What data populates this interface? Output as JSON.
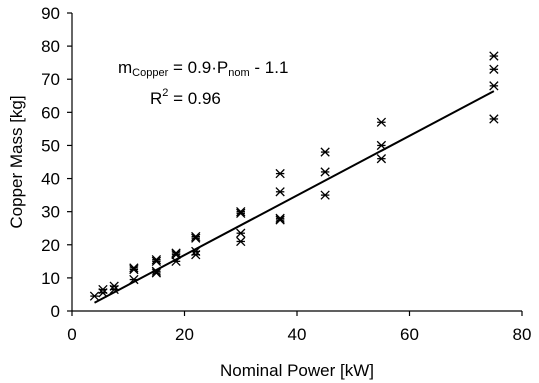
{
  "chart_data": {
    "type": "scatter",
    "xlabel": "Nominal Power [kW]",
    "ylabel": "Copper Mass [kg]",
    "xlim": [
      0,
      80
    ],
    "ylim": [
      0,
      90
    ],
    "x_ticks": [
      0,
      20,
      40,
      60,
      80
    ],
    "y_ticks": [
      0,
      10,
      20,
      30,
      40,
      50,
      60,
      70,
      80,
      90
    ],
    "grid": false,
    "legend": "none",
    "marker": "asterisk",
    "marker_color": "#000000",
    "fit_line": {
      "slope": 0.9,
      "intercept": -1.1,
      "x_range": [
        4,
        75
      ],
      "color": "#000000"
    },
    "annotations": {
      "equation": {
        "prefix": "m",
        "prefix_sub": "Copper",
        "middle": " = 0.9·P",
        "middle_sub": "nom",
        "suffix": " - 1.1"
      },
      "r_squared": {
        "prefix": "R",
        "sup": "2",
        "suffix": " = 0.96"
      }
    },
    "points": [
      {
        "x": 4,
        "y": 4.5
      },
      {
        "x": 5.5,
        "y": 5.5
      },
      {
        "x": 5.5,
        "y": 6.5
      },
      {
        "x": 7.5,
        "y": 6.5
      },
      {
        "x": 7.5,
        "y": 7.5
      },
      {
        "x": 11,
        "y": 9.5
      },
      {
        "x": 11,
        "y": 12.5
      },
      {
        "x": 11,
        "y": 13
      },
      {
        "x": 15,
        "y": 11.5
      },
      {
        "x": 15,
        "y": 12
      },
      {
        "x": 15,
        "y": 15
      },
      {
        "x": 15,
        "y": 15.5
      },
      {
        "x": 18.5,
        "y": 15
      },
      {
        "x": 18.5,
        "y": 17
      },
      {
        "x": 18.5,
        "y": 17.5
      },
      {
        "x": 22,
        "y": 17
      },
      {
        "x": 22,
        "y": 18
      },
      {
        "x": 22,
        "y": 22
      },
      {
        "x": 22,
        "y": 22.5
      },
      {
        "x": 30,
        "y": 21
      },
      {
        "x": 30,
        "y": 23.5
      },
      {
        "x": 30,
        "y": 29.5
      },
      {
        "x": 30,
        "y": 30
      },
      {
        "x": 37,
        "y": 27.5
      },
      {
        "x": 37,
        "y": 28
      },
      {
        "x": 37,
        "y": 36
      },
      {
        "x": 37,
        "y": 41.5
      },
      {
        "x": 45,
        "y": 35
      },
      {
        "x": 45,
        "y": 42
      },
      {
        "x": 45,
        "y": 48
      },
      {
        "x": 55,
        "y": 46
      },
      {
        "x": 55,
        "y": 50
      },
      {
        "x": 55,
        "y": 57
      },
      {
        "x": 75,
        "y": 58
      },
      {
        "x": 75,
        "y": 68
      },
      {
        "x": 75,
        "y": 73
      },
      {
        "x": 75,
        "y": 77
      }
    ]
  }
}
